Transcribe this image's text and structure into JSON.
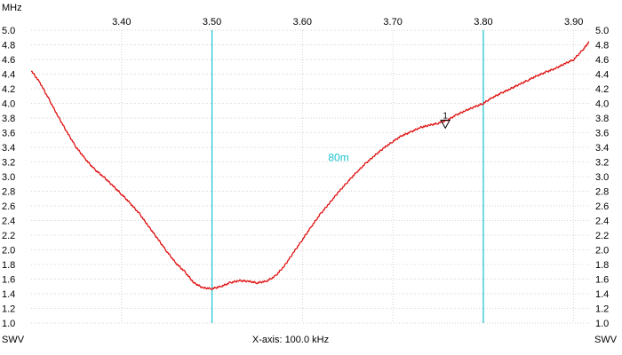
{
  "chart_data": {
    "type": "line",
    "x_unit_label": "MHz",
    "y_label_left": "SWV",
    "y_label_right": "SWV",
    "x_axis_caption": "X-axis: 100.0 kHz",
    "xlim": [
      3.3,
      3.917
    ],
    "ylim": [
      1.0,
      5.0
    ],
    "x_ticks": [
      "3.40",
      "3.50",
      "3.60",
      "3.70",
      "3.80",
      "3.90"
    ],
    "y_ticks": [
      "1.0",
      "1.2",
      "1.4",
      "1.6",
      "1.8",
      "2.0",
      "2.2",
      "2.4",
      "2.6",
      "2.8",
      "3.0",
      "3.2",
      "3.4",
      "3.6",
      "3.8",
      "4.0",
      "4.2",
      "4.4",
      "4.6",
      "4.8",
      "5.0"
    ],
    "grid": true,
    "band_lines": [
      3.5,
      3.8
    ],
    "band_label": "80m",
    "band_label_x": 3.64,
    "band_label_y": 3.26,
    "marker": {
      "label": "1",
      "x": 3.758,
      "y": 3.65
    },
    "series": [
      {
        "color": "#e01010",
        "x": [
          3.3,
          3.31,
          3.32,
          3.33,
          3.34,
          3.35,
          3.36,
          3.37,
          3.38,
          3.39,
          3.4,
          3.41,
          3.42,
          3.43,
          3.44,
          3.45,
          3.46,
          3.47,
          3.48,
          3.49,
          3.5,
          3.51,
          3.52,
          3.53,
          3.54,
          3.55,
          3.56,
          3.57,
          3.58,
          3.59,
          3.6,
          3.61,
          3.62,
          3.63,
          3.64,
          3.65,
          3.66,
          3.67,
          3.68,
          3.69,
          3.7,
          3.71,
          3.72,
          3.73,
          3.74,
          3.75,
          3.76,
          3.77,
          3.78,
          3.79,
          3.8,
          3.81,
          3.82,
          3.83,
          3.84,
          3.85,
          3.86,
          3.87,
          3.88,
          3.89,
          3.9,
          3.91,
          3.917
        ],
        "values": [
          4.45,
          4.28,
          4.05,
          3.82,
          3.6,
          3.4,
          3.24,
          3.1,
          3.0,
          2.88,
          2.76,
          2.63,
          2.49,
          2.32,
          2.15,
          1.98,
          1.82,
          1.7,
          1.55,
          1.48,
          1.47,
          1.5,
          1.55,
          1.58,
          1.57,
          1.55,
          1.57,
          1.64,
          1.78,
          1.96,
          2.14,
          2.32,
          2.49,
          2.64,
          2.79,
          2.93,
          3.06,
          3.18,
          3.29,
          3.39,
          3.48,
          3.56,
          3.61,
          3.67,
          3.7,
          3.73,
          3.77,
          3.84,
          3.9,
          3.95,
          4.0,
          4.08,
          4.14,
          4.2,
          4.26,
          4.32,
          4.38,
          4.43,
          4.48,
          4.54,
          4.6,
          4.73,
          4.84
        ]
      }
    ]
  }
}
